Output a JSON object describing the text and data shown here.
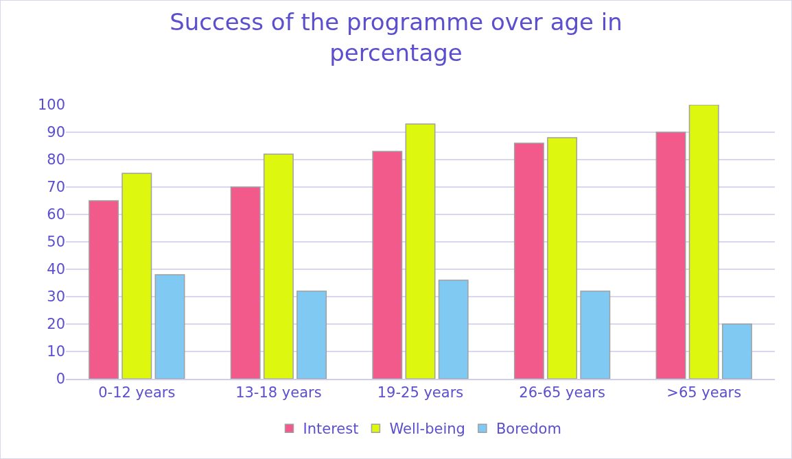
{
  "chart_data": {
    "type": "bar",
    "title": "Success of the programme over age in percentage",
    "categories": [
      "0-12 years",
      "13-18 years",
      "19-25 years",
      "26-65 years",
      ">65 years"
    ],
    "series": [
      {
        "name": "Interest",
        "color": "#f25a8c",
        "values": [
          65,
          70,
          83,
          86,
          90
        ]
      },
      {
        "name": "Well-being",
        "color": "#ddf70f",
        "values": [
          75,
          82,
          93,
          88,
          100
        ]
      },
      {
        "name": "Boredom",
        "color": "#7fc9f3",
        "values": [
          38,
          32,
          36,
          32,
          20
        ]
      }
    ],
    "ylim": [
      0,
      100
    ],
    "yticks": [
      0,
      10,
      20,
      30,
      40,
      50,
      60,
      70,
      80,
      90,
      100
    ],
    "grid": "y",
    "legend": "bottom"
  }
}
